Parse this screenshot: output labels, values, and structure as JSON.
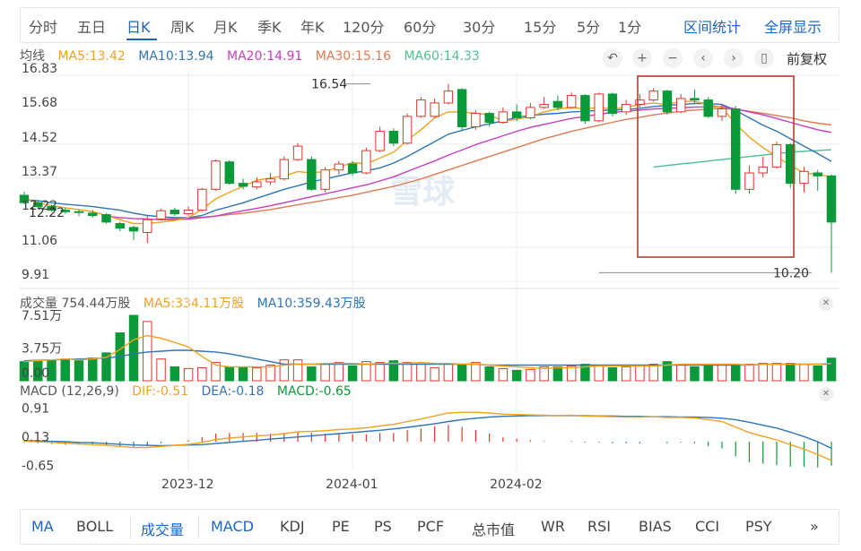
{
  "periods": [
    "分时",
    "五日",
    "日K",
    "周K",
    "月K",
    "季K",
    "年K",
    "120分",
    "60分",
    "30分",
    "15分",
    "5分",
    "1分"
  ],
  "period_active": "日K",
  "top_links": {
    "range_stats": "区间统计",
    "fullscreen": "全屏显示"
  },
  "toolbar": {
    "adjust_label": "前复权"
  },
  "colors": {
    "up": "#e0352b",
    "down": "#0b9a3a",
    "ma5": "#f0a21f",
    "ma10": "#2f74b5",
    "ma20": "#c93bc2",
    "ma30": "#e07a4f",
    "ma60": "#4cbf8f"
  },
  "legend_price": {
    "title": "均线",
    "ma5": "MA5:13.42",
    "ma10": "MA10:13.94",
    "ma20": "MA20:14.91",
    "ma30": "MA30:15.16",
    "ma60": "MA60:14.33"
  },
  "legend_volume": {
    "title": "成交量 754.44万股",
    "ma5": "MA5:334.11万股",
    "ma10": "MA10:359.43万股"
  },
  "legend_macd": {
    "title": "MACD (12,26,9)",
    "dif": "DIF:-0.51",
    "dea": "DEA:-0.18",
    "macd": "MACD:-0.65"
  },
  "indicators": [
    "MA",
    "BOLL",
    "成交量",
    "MACD",
    "KDJ",
    "PE",
    "PS",
    "PCF",
    "总市值",
    "WR",
    "RSI",
    "BIAS",
    "CCI",
    "PSY"
  ],
  "indicators_more": "»",
  "watermark": "雪球",
  "chart_data": {
    "type": "candlestick",
    "price_axis": {
      "ticks": [
        16.83,
        15.68,
        14.52,
        13.37,
        12.22,
        11.06,
        9.91
      ],
      "ylim": [
        9.91,
        16.83
      ]
    },
    "date_ticks": [
      "2023-12",
      "2024-01",
      "2024-02"
    ],
    "date_tick_index": [
      12,
      24,
      36
    ],
    "annotations": {
      "high": 16.54,
      "high_index": 24,
      "low": 10.2,
      "low_index": 42,
      "left_value": "12.22"
    },
    "candles": [
      [
        12.8,
        12.55,
        12.92,
        12.5
      ],
      [
        12.55,
        12.42,
        12.62,
        12.35
      ],
      [
        12.42,
        12.3,
        12.48,
        12.25
      ],
      [
        12.3,
        12.25,
        12.38,
        12.18
      ],
      [
        12.25,
        12.22,
        12.32,
        12.1
      ],
      [
        12.2,
        12.12,
        12.3,
        12.05
      ],
      [
        12.15,
        11.9,
        12.2,
        11.85
      ],
      [
        11.85,
        11.7,
        11.92,
        11.6
      ],
      [
        11.72,
        11.6,
        11.78,
        11.3
      ],
      [
        11.55,
        11.98,
        12.12,
        11.2
      ],
      [
        12.0,
        12.28,
        12.35,
        11.95
      ],
      [
        12.3,
        12.18,
        12.38,
        12.1
      ],
      [
        12.18,
        12.3,
        12.42,
        12.1
      ],
      [
        12.3,
        13.0,
        13.05,
        12.25
      ],
      [
        13.0,
        13.95,
        14.0,
        12.95
      ],
      [
        13.92,
        13.2,
        13.98,
        13.15
      ],
      [
        13.2,
        13.1,
        13.35,
        13.0
      ],
      [
        13.08,
        13.25,
        13.4,
        13.0
      ],
      [
        13.25,
        13.35,
        13.55,
        13.15
      ],
      [
        13.35,
        14.0,
        14.1,
        13.3
      ],
      [
        14.0,
        14.45,
        14.55,
        13.95
      ],
      [
        14.0,
        13.0,
        14.1,
        12.95
      ],
      [
        13.0,
        13.65,
        13.75,
        12.9
      ],
      [
        13.65,
        13.85,
        13.95,
        13.5
      ],
      [
        13.85,
        13.55,
        13.95,
        13.45
      ],
      [
        13.55,
        14.3,
        14.4,
        13.5
      ],
      [
        14.3,
        14.95,
        15.1,
        14.25
      ],
      [
        14.95,
        14.55,
        15.05,
        14.45
      ],
      [
        14.55,
        15.45,
        15.55,
        14.5
      ],
      [
        15.45,
        16.0,
        16.1,
        15.4
      ],
      [
        15.45,
        15.9,
        16.05,
        15.4
      ],
      [
        15.9,
        16.3,
        16.54,
        15.85
      ],
      [
        16.35,
        15.1,
        16.4,
        14.95
      ],
      [
        15.1,
        15.55,
        15.65,
        15.0
      ],
      [
        15.55,
        15.25,
        15.6,
        15.1
      ],
      [
        15.25,
        15.6,
        15.75,
        15.2
      ],
      [
        15.6,
        15.4,
        15.85,
        15.3
      ],
      [
        15.4,
        15.75,
        15.9,
        15.35
      ],
      [
        15.75,
        15.85,
        16.1,
        15.7
      ],
      [
        15.95,
        15.75,
        16.15,
        15.65
      ],
      [
        15.75,
        16.15,
        16.25,
        15.7
      ],
      [
        16.15,
        15.3,
        16.2,
        15.2
      ],
      [
        15.3,
        16.2,
        16.25,
        15.25
      ],
      [
        16.2,
        15.55,
        16.25,
        15.45
      ],
      [
        15.6,
        15.85,
        16.0,
        15.5
      ],
      [
        15.85,
        16.0,
        16.2,
        15.75
      ],
      [
        16.0,
        16.3,
        16.4,
        15.95
      ],
      [
        16.3,
        15.6,
        16.35,
        15.5
      ],
      [
        15.6,
        16.05,
        16.2,
        15.55
      ],
      [
        16.05,
        16.0,
        16.35,
        15.9
      ],
      [
        16.0,
        15.45,
        16.1,
        15.4
      ],
      [
        15.45,
        15.7,
        15.85,
        15.3
      ],
      [
        15.7,
        13.0,
        15.8,
        12.85
      ],
      [
        13.0,
        13.55,
        13.8,
        12.85
      ],
      [
        13.55,
        13.75,
        14.1,
        13.4
      ],
      [
        13.75,
        14.5,
        14.6,
        13.7
      ],
      [
        14.5,
        13.2,
        14.55,
        13.05
      ],
      [
        13.2,
        13.6,
        13.75,
        12.9
      ],
      [
        13.55,
        13.45,
        13.65,
        12.95
      ],
      [
        13.45,
        11.9,
        13.5,
        10.2
      ]
    ],
    "ma5": [
      12.7,
      12.55,
      12.45,
      12.38,
      12.32,
      12.25,
      12.12,
      11.98,
      11.85,
      11.85,
      11.9,
      11.95,
      12.05,
      12.33,
      12.68,
      12.9,
      13.1,
      13.3,
      13.38,
      13.45,
      13.6,
      13.55,
      13.6,
      13.75,
      13.9,
      13.85,
      14.05,
      14.25,
      14.65,
      15.0,
      15.4,
      15.6,
      15.6,
      15.55,
      15.5,
      15.3,
      15.35,
      15.45,
      15.6,
      15.7,
      15.75,
      15.7,
      15.75,
      15.7,
      15.75,
      15.85,
      15.9,
      15.85,
      15.95,
      15.95,
      15.85,
      15.75,
      15.2,
      14.75,
      14.4,
      14.1,
      13.8,
      13.55,
      13.5,
      13.42
    ],
    "ma10": [
      12.65,
      12.62,
      12.55,
      12.5,
      12.46,
      12.42,
      12.36,
      12.3,
      12.2,
      12.12,
      12.08,
      12.05,
      12.05,
      12.12,
      12.3,
      12.42,
      12.55,
      12.7,
      12.85,
      13.0,
      13.12,
      13.25,
      13.35,
      13.45,
      13.55,
      13.62,
      13.72,
      13.88,
      14.1,
      14.35,
      14.6,
      14.85,
      14.98,
      15.1,
      15.2,
      15.3,
      15.42,
      15.48,
      15.52,
      15.55,
      15.6,
      15.62,
      15.65,
      15.66,
      15.68,
      15.72,
      15.78,
      15.82,
      15.85,
      15.88,
      15.88,
      15.85,
      15.65,
      15.4,
      15.15,
      14.95,
      14.7,
      14.45,
      14.2,
      13.94
    ],
    "ma20": [
      null,
      null,
      null,
      null,
      null,
      null,
      12.1,
      12.05,
      12.02,
      12.0,
      11.98,
      11.98,
      12.0,
      12.05,
      12.1,
      12.2,
      12.28,
      12.36,
      12.45,
      12.55,
      12.65,
      12.75,
      12.85,
      12.95,
      13.05,
      13.15,
      13.28,
      13.42,
      13.6,
      13.78,
      13.95,
      14.15,
      14.32,
      14.5,
      14.65,
      14.8,
      14.95,
      15.08,
      15.18,
      15.28,
      15.38,
      15.45,
      15.52,
      15.58,
      15.62,
      15.66,
      15.7,
      15.72,
      15.74,
      15.76,
      15.77,
      15.78,
      15.7,
      15.6,
      15.5,
      15.38,
      15.25,
      15.12,
      15.0,
      14.91
    ],
    "ma30": [
      null,
      null,
      null,
      null,
      null,
      null,
      null,
      null,
      null,
      null,
      12.0,
      12.02,
      12.04,
      12.06,
      12.1,
      12.15,
      12.2,
      12.26,
      12.32,
      12.4,
      12.48,
      12.56,
      12.64,
      12.72,
      12.8,
      12.9,
      13.0,
      13.1,
      13.22,
      13.35,
      13.5,
      13.65,
      13.8,
      13.95,
      14.1,
      14.25,
      14.4,
      14.55,
      14.7,
      14.82,
      14.95,
      15.05,
      15.15,
      15.25,
      15.35,
      15.42,
      15.5,
      15.56,
      15.62,
      15.66,
      15.7,
      15.72,
      15.68,
      15.62,
      15.55,
      15.48,
      15.4,
      15.3,
      15.22,
      15.16
    ],
    "ma60": [
      null,
      null,
      null,
      null,
      null,
      null,
      null,
      null,
      null,
      null,
      null,
      null,
      null,
      null,
      null,
      null,
      null,
      null,
      null,
      null,
      null,
      null,
      null,
      null,
      null,
      null,
      null,
      null,
      null,
      null,
      null,
      null,
      null,
      null,
      null,
      null,
      null,
      null,
      null,
      null,
      null,
      null,
      null,
      null,
      null,
      null,
      13.75,
      13.8,
      13.85,
      13.9,
      13.95,
      14.0,
      14.05,
      14.1,
      14.15,
      14.2,
      14.25,
      14.28,
      14.3,
      14.33
    ],
    "volume_axis": {
      "ticks": [
        "7.51万",
        "3.75万"
      ],
      "ylim": [
        0,
        7.51
      ]
    },
    "volume": [
      2.2,
      2.3,
      2.4,
      2.5,
      2.3,
      2.6,
      3.2,
      5.5,
      7.51,
      6.8,
      2.5,
      1.6,
      1.4,
      1.5,
      2.1,
      1.6,
      1.5,
      1.5,
      1.8,
      2.4,
      2.4,
      1.6,
      1.9,
      2.1,
      1.7,
      2.2,
      2.1,
      2.3,
      2.1,
      1.9,
      1.5,
      1.9,
      1.9,
      2.1,
      1.6,
      1.4,
      1.2,
      1.3,
      1.6,
      1.6,
      1.7,
      1.9,
      1.7,
      1.5,
      1.6,
      1.8,
      1.9,
      2.2,
      1.9,
      1.6,
      1.8,
      1.8,
      1.9,
      1.9,
      2.0,
      2.0,
      2.0,
      1.9,
      1.7,
      2.6
    ],
    "vol_ma5": [
      2.2,
      2.3,
      2.4,
      2.5,
      2.4,
      2.5,
      2.7,
      3.6,
      4.7,
      5.2,
      4.9,
      4.4,
      3.9,
      2.8,
      1.8,
      1.6,
      1.6,
      1.6,
      1.6,
      1.8,
      1.9,
      1.9,
      2.0,
      2.0,
      2.0,
      1.9,
      2.0,
      2.0,
      2.0,
      2.1,
      2.0,
      2.0,
      1.9,
      1.9,
      1.8,
      1.7,
      1.6,
      1.5,
      1.4,
      1.5,
      1.5,
      1.6,
      1.7,
      1.7,
      1.7,
      1.7,
      1.7,
      1.8,
      1.9,
      1.9,
      1.9,
      1.9,
      1.9,
      1.8,
      1.9,
      1.9,
      1.9,
      1.9,
      1.9,
      2.0
    ],
    "vol_ma10": [
      2.3,
      2.35,
      2.4,
      2.45,
      2.5,
      2.55,
      2.6,
      2.8,
      3.1,
      3.3,
      3.4,
      3.5,
      3.5,
      3.4,
      3.3,
      3.1,
      2.8,
      2.5,
      2.2,
      1.9,
      1.9,
      1.9,
      1.9,
      1.9,
      1.9,
      1.9,
      1.9,
      1.9,
      1.9,
      1.9,
      1.9,
      1.9,
      1.9,
      1.9,
      1.8,
      1.8,
      1.8,
      1.8,
      1.8,
      1.8,
      1.8,
      1.8,
      1.8,
      1.8,
      1.8,
      1.8,
      1.8,
      1.8,
      1.8,
      1.8,
      1.8,
      1.8,
      1.8,
      1.8,
      1.9,
      1.9,
      1.9,
      1.9,
      1.9,
      1.9
    ],
    "macd_axis": {
      "ticks": [
        0.91,
        0.13,
        -0.65
      ],
      "ylim": [
        -0.78,
        1.0
      ]
    },
    "dif": [
      0.02,
      0.0,
      -0.02,
      -0.04,
      -0.06,
      -0.08,
      -0.1,
      -0.13,
      -0.16,
      -0.16,
      -0.13,
      -0.1,
      -0.07,
      -0.02,
      0.06,
      0.1,
      0.13,
      0.16,
      0.18,
      0.22,
      0.27,
      0.28,
      0.3,
      0.33,
      0.35,
      0.38,
      0.43,
      0.47,
      0.55,
      0.62,
      0.7,
      0.78,
      0.8,
      0.8,
      0.78,
      0.75,
      0.74,
      0.73,
      0.72,
      0.71,
      0.72,
      0.7,
      0.69,
      0.68,
      0.67,
      0.67,
      0.68,
      0.66,
      0.66,
      0.65,
      0.6,
      0.55,
      0.4,
      0.25,
      0.15,
      0.05,
      -0.08,
      -0.2,
      -0.35,
      -0.51
    ],
    "dea": [
      0.03,
      0.02,
      0.01,
      0.0,
      -0.02,
      -0.03,
      -0.05,
      -0.07,
      -0.09,
      -0.1,
      -0.11,
      -0.1,
      -0.09,
      -0.08,
      -0.05,
      -0.02,
      0.01,
      0.04,
      0.07,
      0.1,
      0.13,
      0.16,
      0.19,
      0.22,
      0.25,
      0.28,
      0.31,
      0.35,
      0.39,
      0.44,
      0.49,
      0.55,
      0.6,
      0.64,
      0.67,
      0.69,
      0.7,
      0.71,
      0.71,
      0.71,
      0.71,
      0.71,
      0.7,
      0.7,
      0.69,
      0.69,
      0.68,
      0.68,
      0.67,
      0.67,
      0.66,
      0.64,
      0.6,
      0.53,
      0.45,
      0.37,
      0.26,
      0.14,
      0.0,
      -0.18
    ],
    "macd_hist": [
      -0.02,
      -0.04,
      -0.06,
      -0.08,
      -0.08,
      -0.1,
      -0.1,
      -0.12,
      -0.14,
      -0.12,
      -0.04,
      0.0,
      0.04,
      0.12,
      0.22,
      0.24,
      0.24,
      0.24,
      0.22,
      0.24,
      0.28,
      0.24,
      0.22,
      0.22,
      0.2,
      0.2,
      0.24,
      0.24,
      0.32,
      0.36,
      0.42,
      0.46,
      0.4,
      0.32,
      0.22,
      0.12,
      0.08,
      0.04,
      0.02,
      0.0,
      0.02,
      -0.02,
      -0.02,
      -0.04,
      -0.04,
      -0.04,
      0.0,
      -0.04,
      -0.02,
      -0.04,
      -0.12,
      -0.18,
      -0.4,
      -0.56,
      -0.6,
      -0.64,
      -0.68,
      -0.68,
      -0.7,
      -0.65
    ]
  }
}
